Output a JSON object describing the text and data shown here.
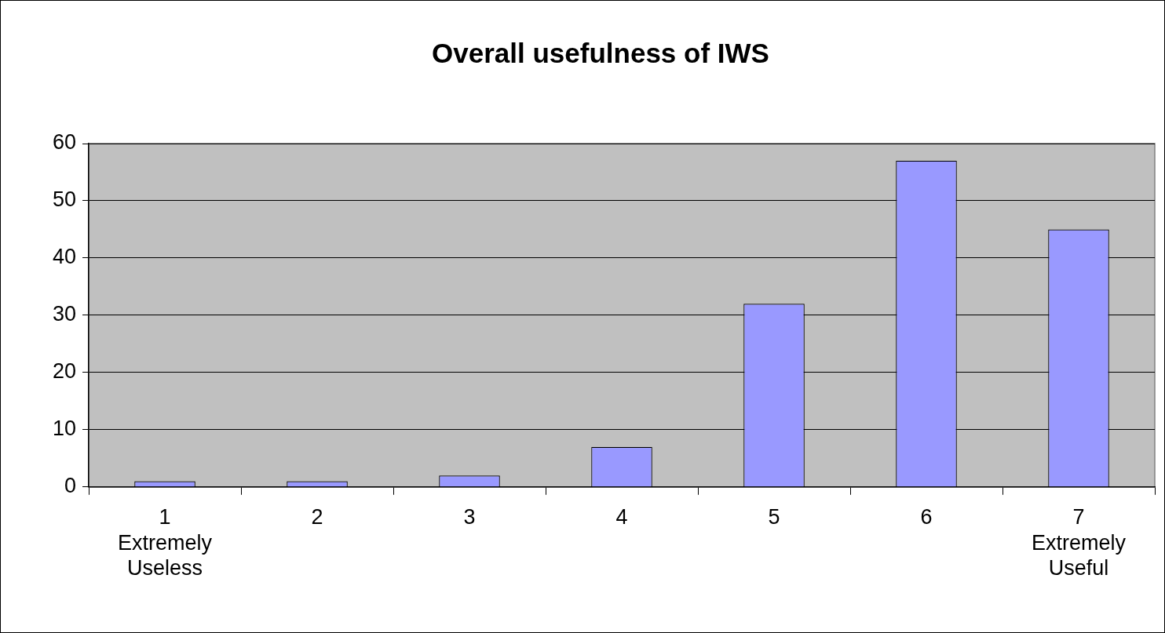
{
  "chart_data": {
    "type": "bar",
    "title": "Overall usefulness of IWS",
    "categories": [
      "1\nExtremely\nUseless",
      "2",
      "3",
      "4",
      "5",
      "6",
      "7\nExtremely\nUseful"
    ],
    "values": [
      1,
      1,
      2,
      7,
      32,
      57,
      45
    ],
    "color": "#9999ff",
    "ylim": [
      0,
      60
    ],
    "yticks": [
      0,
      10,
      20,
      30,
      40,
      50,
      60
    ],
    "grid": "y",
    "legend": false
  }
}
